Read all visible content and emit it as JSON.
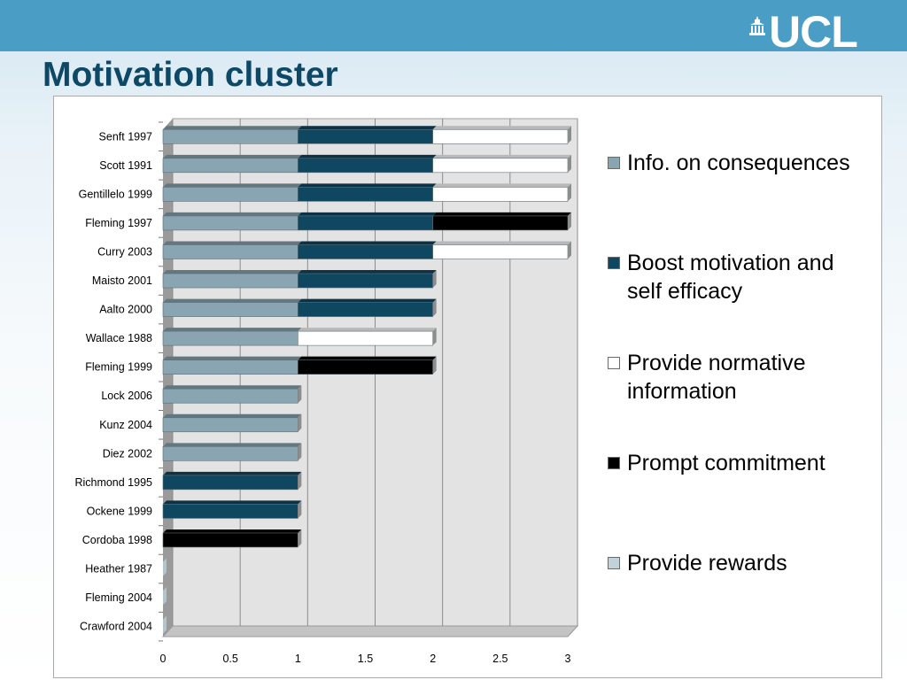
{
  "slide": {
    "title": "Motivation cluster",
    "logo_text": "UCL"
  },
  "colors": {
    "header_band": "#4a9dc4",
    "title": "#0d4866"
  },
  "chart_data": {
    "type": "bar",
    "orientation": "horizontal",
    "stacked": true,
    "three_d": true,
    "categories": [
      "Senft 1997",
      "Scott 1991",
      "Gentillelo 1999",
      "Fleming 1997",
      "Curry 2003",
      "Maisto 2001",
      "Aalto 2000",
      "Wallace 1988",
      "Fleming 1999",
      "Lock 2006",
      "Kunz 2004",
      "Diez 2002",
      "Richmond 1995",
      "Ockene 1999",
      "Cordoba 1998",
      "Heather 1987",
      "Fleming 2004",
      "Crawford 2004"
    ],
    "series": [
      {
        "name": "Info. on consequences",
        "color": "#8aa5b2",
        "values": [
          1,
          1,
          1,
          1,
          1,
          1,
          1,
          1,
          1,
          1,
          1,
          1,
          0,
          0,
          0,
          0,
          0,
          0
        ]
      },
      {
        "name": "Boost motivation and self efficacy",
        "color": "#0f4760",
        "values": [
          1,
          1,
          1,
          1,
          1,
          1,
          1,
          0,
          0,
          0,
          0,
          0,
          1,
          1,
          0,
          0,
          0,
          0
        ]
      },
      {
        "name": "Provide normative information",
        "color": "#ffffff",
        "values": [
          1,
          1,
          1,
          0,
          1,
          0,
          0,
          1,
          0,
          0,
          0,
          0,
          0,
          0,
          0,
          0,
          0,
          0
        ]
      },
      {
        "name": "Prompt commitment",
        "color": "#000000",
        "values": [
          0,
          0,
          0,
          1,
          0,
          0,
          0,
          0,
          1,
          0,
          0,
          0,
          0,
          0,
          1,
          0,
          0,
          0
        ]
      },
      {
        "name": "Provide rewards",
        "color": "#c2d2da",
        "values": [
          0,
          0,
          0,
          0,
          0,
          0,
          0,
          0,
          0,
          0,
          0,
          0,
          0,
          0,
          0,
          0,
          0,
          0
        ]
      }
    ],
    "xlim": [
      0,
      3
    ],
    "x_ticks": [
      "0",
      "0.5",
      "1",
      "1.5",
      "2",
      "2.5",
      "3"
    ],
    "xlabel": "",
    "ylabel": "",
    "title": "",
    "grid": true,
    "legend_position": "right"
  }
}
